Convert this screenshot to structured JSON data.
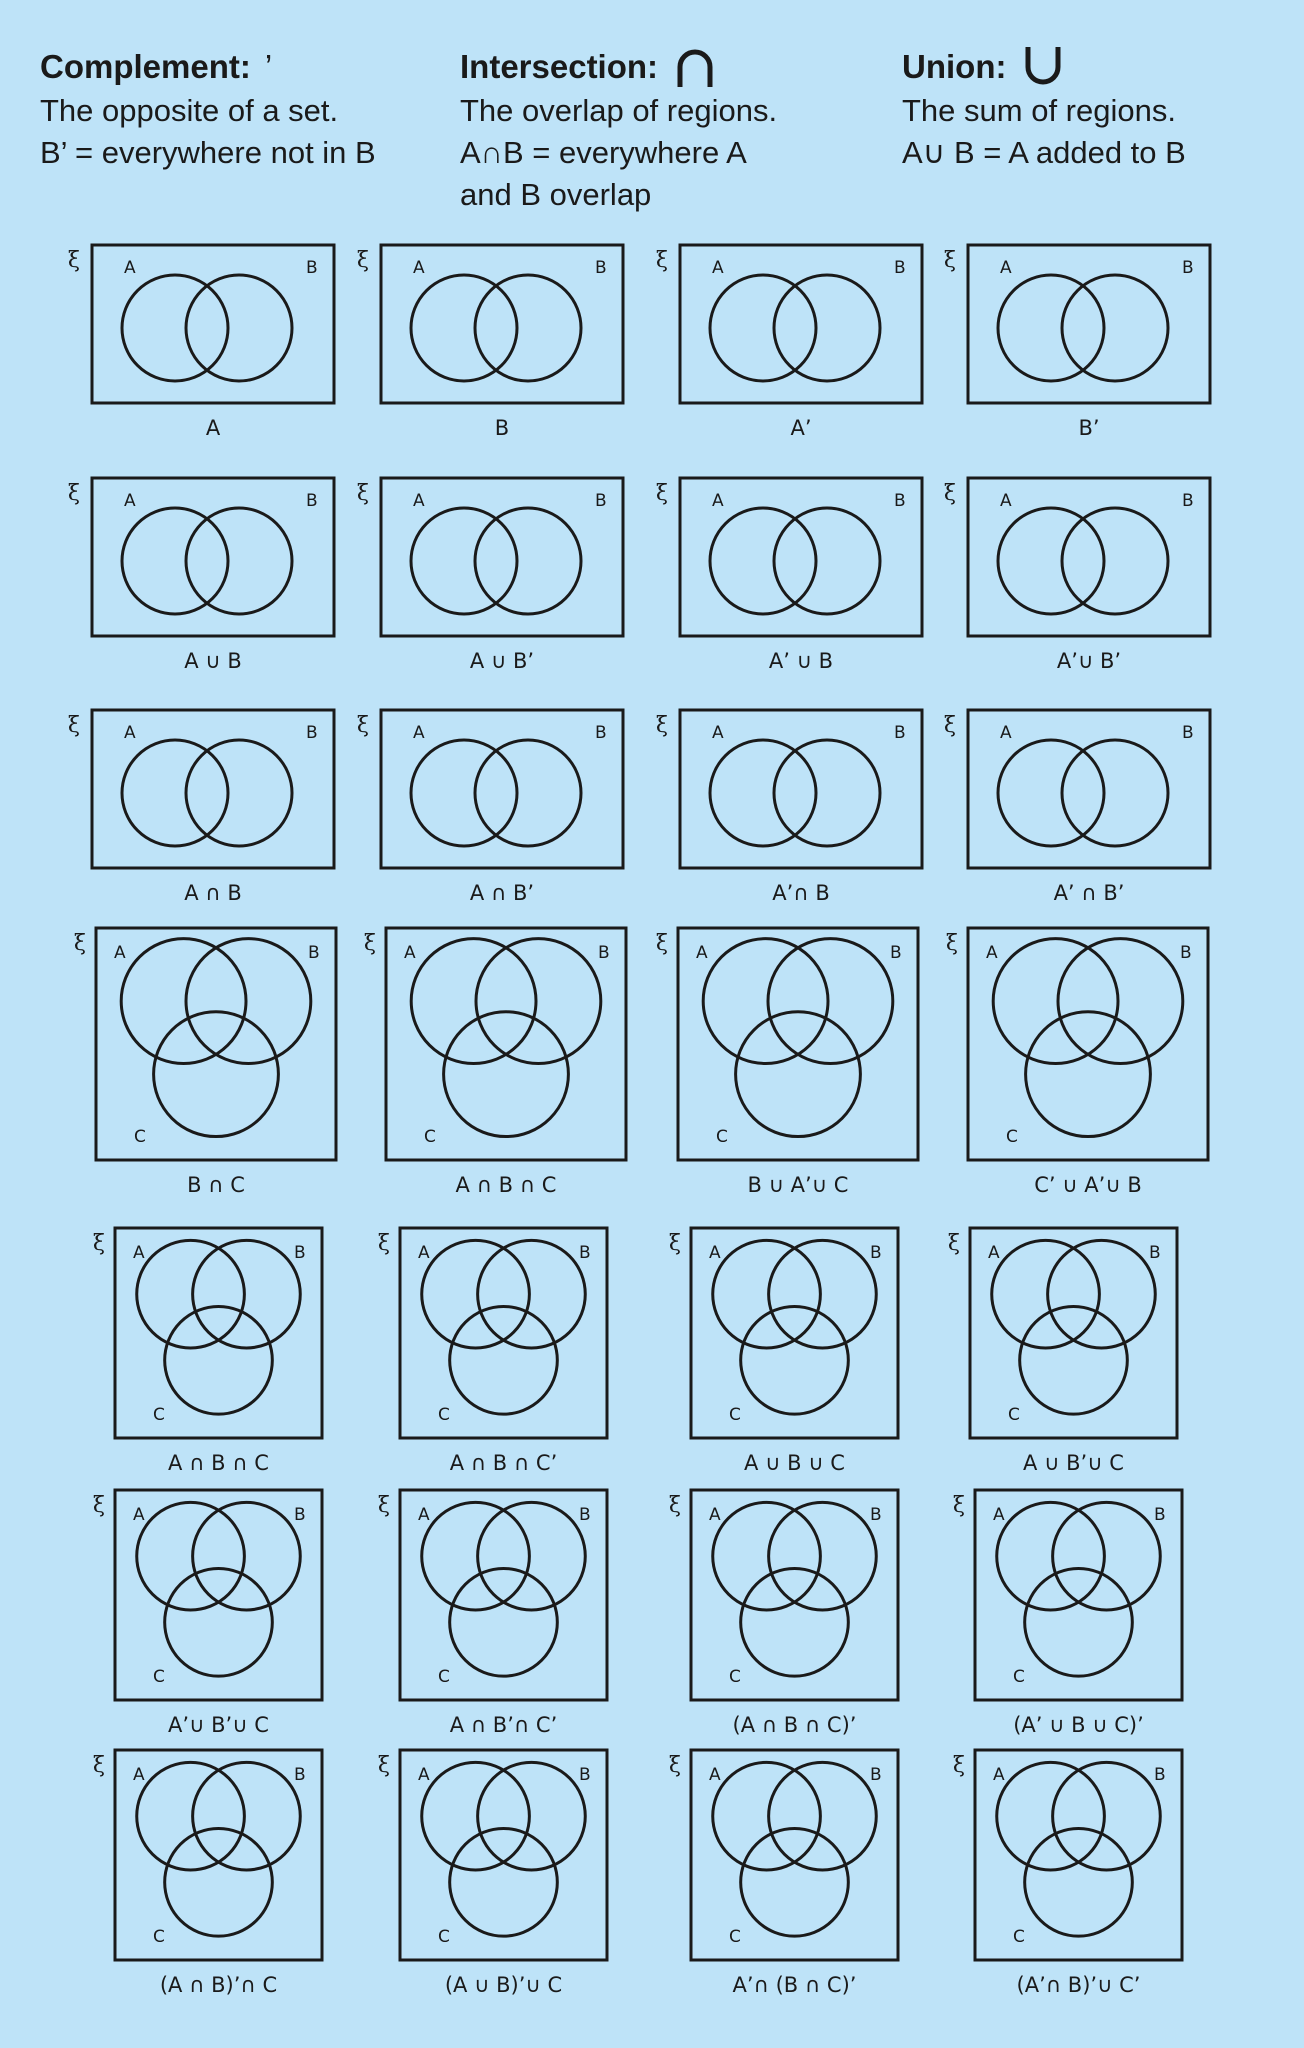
{
  "definitions": {
    "complement": {
      "title": "Complement:",
      "symbol": "’",
      "line1": "The opposite of a set.",
      "line2": "B’ = everywhere not in B",
      "line3": ""
    },
    "intersection": {
      "title": "Intersection:",
      "symbol": "∩",
      "line1": "The overlap of regions.",
      "line2": "A∩B = everywhere A",
      "line3": "and B overlap"
    },
    "union": {
      "title": "Union:",
      "symbol": "∪",
      "line1": "The sum of regions.",
      "line2": "A∪ B = A added to B",
      "line3": ""
    }
  },
  "universal_symbol": "ξ",
  "set_names": {
    "a": "A",
    "b": "B",
    "c": "C"
  },
  "two_set_diagrams": [
    "A",
    "B",
    "A’",
    "B’",
    "A ∪ B",
    "A ∪ B’",
    "A’ ∪ B",
    "A’∪ B’",
    "A ∩ B",
    "A ∩ B’",
    "A’∩ B",
    "A’ ∩ B’"
  ],
  "three_set_diagrams": [
    "B ∩ C",
    "A ∩ B ∩ C",
    "B ∪ A’∪ C",
    "C’ ∪ A’∪ B",
    "A ∩ B ∩ C",
    "A ∩ B ∩ C’",
    "A ∪ B ∪ C",
    "A ∪ B’∪ C",
    "A’∪ B’∪ C",
    "A ∩ B’∩ C’",
    "(A ∩ B ∩ C)’",
    "(A’ ∪ B ∪ C)’",
    "(A ∩ B)’∩ C",
    "(A ∪ B)’∪ C",
    "A’∩ (B ∩ C)’",
    "(A’∩ B)’∪ C’"
  ],
  "colors": {
    "background": "#bee3f8",
    "ink": "#1a1a1a"
  }
}
